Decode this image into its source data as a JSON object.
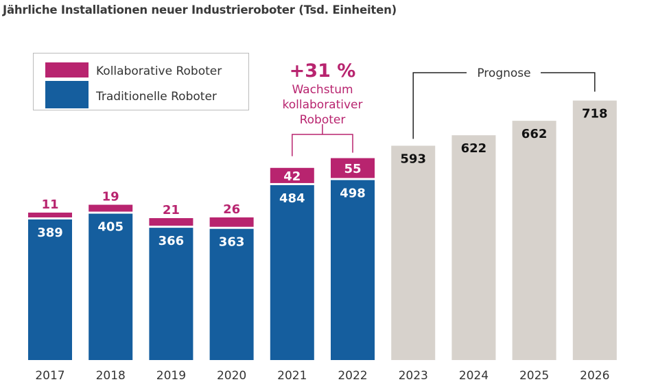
{
  "chart_data": {
    "type": "bar",
    "stacked": true,
    "title": "Jährliche Installationen neuer Industrieroboter (Tsd. Einheiten)",
    "categories": [
      "2017",
      "2018",
      "2019",
      "2020",
      "2021",
      "2022",
      "2023",
      "2024",
      "2025",
      "2026"
    ],
    "series": [
      {
        "name": "Traditionelle Roboter",
        "color": "#155e9e",
        "values": [
          389,
          405,
          366,
          363,
          484,
          498,
          null,
          null,
          null,
          null
        ]
      },
      {
        "name": "Kollaborative Roboter",
        "color": "#b8246f",
        "values": [
          11,
          19,
          21,
          26,
          42,
          55,
          null,
          null,
          null,
          null
        ]
      },
      {
        "name": "",
        "color": "#d7d2cc",
        "values": [
          null,
          null,
          null,
          null,
          null,
          null,
          593,
          622,
          662,
          718
        ]
      }
    ],
    "legend_position": "top-left",
    "grid": false,
    "ylim": [
      0,
      760
    ],
    "annotations": {
      "growth_value": "+31 %",
      "growth_lines": [
        "Wachstum",
        "kollaborativer",
        "Roboter"
      ],
      "forecast_label": "Prognose"
    }
  }
}
